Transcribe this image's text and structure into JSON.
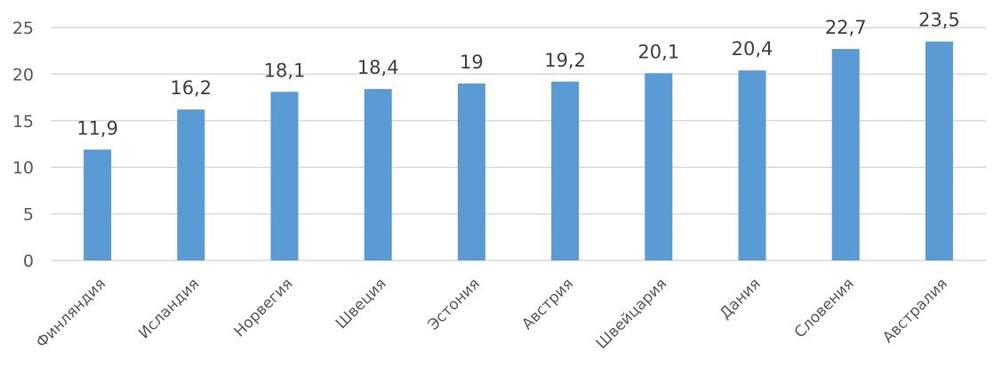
{
  "chart_data": {
    "type": "bar",
    "title": "",
    "xlabel": "",
    "ylabel": "",
    "categories": [
      "Финляндия",
      "Исландия",
      "Норвегия",
      "Швеция",
      "Эстония",
      "Австрия",
      "Швейцария",
      "Дания",
      "Словения",
      "Австралия"
    ],
    "values": [
      11.9,
      16.2,
      18.1,
      18.4,
      19,
      19.2,
      20.1,
      20.4,
      22.7,
      23.5
    ],
    "data_labels": [
      "11,9",
      "16,2",
      "18,1",
      "18,4",
      "19",
      "19,2",
      "20,1",
      "20,4",
      "22,7",
      "23,5"
    ],
    "ylim": [
      0,
      25
    ],
    "yticks": [
      "0",
      "5",
      "10",
      "15",
      "20",
      "25"
    ],
    "grid": true,
    "bar_color": "#5b9bd5",
    "grid_color": "#d9d9d9"
  }
}
